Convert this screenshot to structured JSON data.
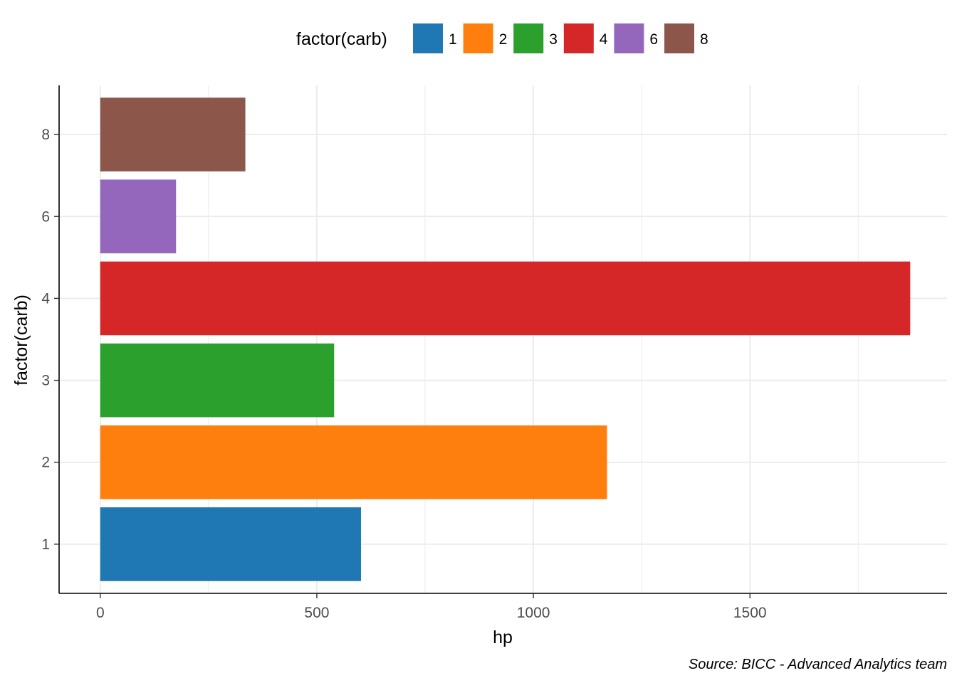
{
  "chart_data": {
    "type": "bar",
    "orientation": "horizontal",
    "categories": [
      "1",
      "2",
      "3",
      "4",
      "6",
      "8"
    ],
    "values": [
      602,
      1170,
      540,
      1870,
      175,
      335
    ],
    "colors": [
      "#1f77b4",
      "#ff7f0e",
      "#2ca02c",
      "#d62728",
      "#9467bd",
      "#8c564b"
    ],
    "xlabel": "hp",
    "ylabel": "factor(carb)",
    "xlim": [
      -95,
      1955
    ],
    "xticks": [
      0,
      500,
      1000,
      1500
    ],
    "xtick_labels": [
      "0",
      "500",
      "1000",
      "1500"
    ],
    "grid": true,
    "legend": {
      "title": "factor(carb)",
      "position": "top",
      "entries": [
        "1",
        "2",
        "3",
        "4",
        "6",
        "8"
      ]
    },
    "caption": "Source: BICC - Advanced Analytics team"
  }
}
